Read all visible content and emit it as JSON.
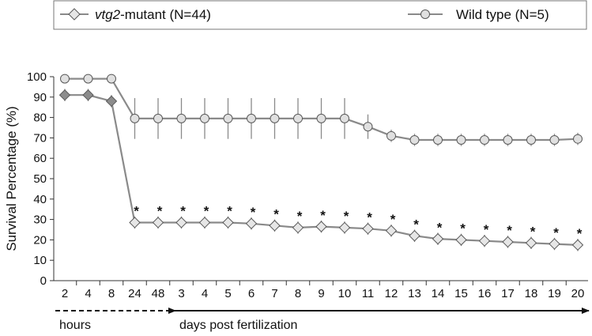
{
  "chart_data": {
    "type": "line",
    "ylabel": "Survival Percentage (%)",
    "ylim": [
      0,
      100
    ],
    "yticks": [
      0,
      10,
      20,
      30,
      40,
      50,
      60,
      70,
      80,
      90,
      100
    ],
    "categories": [
      "2",
      "4",
      "8",
      "24",
      "48",
      "3",
      "4",
      "5",
      "6",
      "7",
      "8",
      "9",
      "10",
      "11",
      "12",
      "13",
      "14",
      "15",
      "16",
      "17",
      "18",
      "19",
      "20"
    ],
    "grid": false,
    "legend_position": "top",
    "series": [
      {
        "name_prefix": "vtg2",
        "name_suffix": "-mutant (N=44)",
        "marker": "diamond",
        "values": [
          91,
          91,
          88,
          28.5,
          28.5,
          28.5,
          28.5,
          28.5,
          28,
          27,
          26,
          26.5,
          26,
          25.5,
          24.5,
          22,
          20.5,
          20,
          19.5,
          19,
          18.5,
          18,
          17.5
        ],
        "errors": [
          3,
          3,
          3,
          3,
          3,
          3,
          3,
          3,
          3,
          3,
          3,
          3,
          3,
          3,
          3,
          3,
          3,
          3,
          3,
          3,
          3,
          3,
          3
        ],
        "significance": [
          false,
          false,
          false,
          true,
          true,
          true,
          true,
          true,
          true,
          true,
          true,
          true,
          true,
          true,
          true,
          true,
          true,
          true,
          true,
          true,
          true,
          true,
          true
        ]
      },
      {
        "name": "Wild type (N=5)",
        "marker": "circle",
        "values": [
          99,
          99,
          99,
          79.5,
          79.5,
          79.5,
          79.5,
          79.5,
          79.5,
          79.5,
          79.5,
          79.5,
          79.5,
          75.5,
          71,
          69,
          69,
          69,
          69,
          69,
          69,
          69,
          69.5
        ],
        "errors": [
          0,
          0,
          0,
          10,
          10,
          10,
          10,
          10,
          10,
          10,
          10,
          10,
          10,
          6,
          3,
          3,
          3,
          3,
          3,
          3,
          3,
          3,
          3
        ]
      }
    ],
    "significance_mark": "*",
    "x_groups": [
      {
        "label": "hours",
        "from_index": 0,
        "to_index": 4,
        "style": "dashed"
      },
      {
        "label": "days post fertilization",
        "from_index": 5,
        "to_index": 22,
        "style": "solid-arrow"
      }
    ],
    "colors": {
      "line": "#8a8a8a",
      "mutant_fill_hours": "#8c8c8c",
      "mutant_fill_days": "#e6e6e6",
      "wildtype_fill": "#e0e0e0",
      "marker_stroke": "#5a5a5a",
      "axis": "#333333"
    }
  }
}
